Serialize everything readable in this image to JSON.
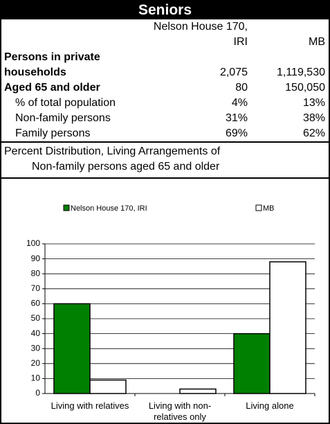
{
  "title": "Seniors",
  "table": {
    "columns": [
      "Nelson House 170, IRI",
      "MB"
    ],
    "rows": [
      {
        "label": "Persons in private households",
        "values": [
          "2,075",
          "1,119,530"
        ],
        "bold": true
      },
      {
        "label": "Aged 65 and older",
        "values": [
          "80",
          "150,050"
        ],
        "bold": true
      },
      {
        "label": "% of total population",
        "values": [
          "4%",
          "13%"
        ],
        "indent": true
      },
      {
        "label": "Non-family persons",
        "values": [
          "31%",
          "38%"
        ],
        "indent": true
      },
      {
        "label": "Family persons",
        "values": [
          "69%",
          "62%"
        ],
        "indent": true
      }
    ]
  },
  "caption": [
    "Percent Distribution, Living Arrangements of",
    "Non-family persons aged 65 and older"
  ],
  "chart_data": {
    "type": "bar",
    "categories": [
      "Living with relatives",
      "Living with non-relatives only",
      "Living alone"
    ],
    "series": [
      {
        "name": "Nelson House 170, IRI",
        "color": "#008000",
        "values": [
          60,
          0,
          40
        ]
      },
      {
        "name": "MB",
        "color": "#ffffff",
        "values": [
          9,
          3,
          88
        ]
      }
    ],
    "ylim": [
      0,
      100
    ],
    "yticks": [
      0,
      10,
      20,
      30,
      40,
      50,
      60,
      70,
      80,
      90,
      100
    ],
    "grid": true
  }
}
